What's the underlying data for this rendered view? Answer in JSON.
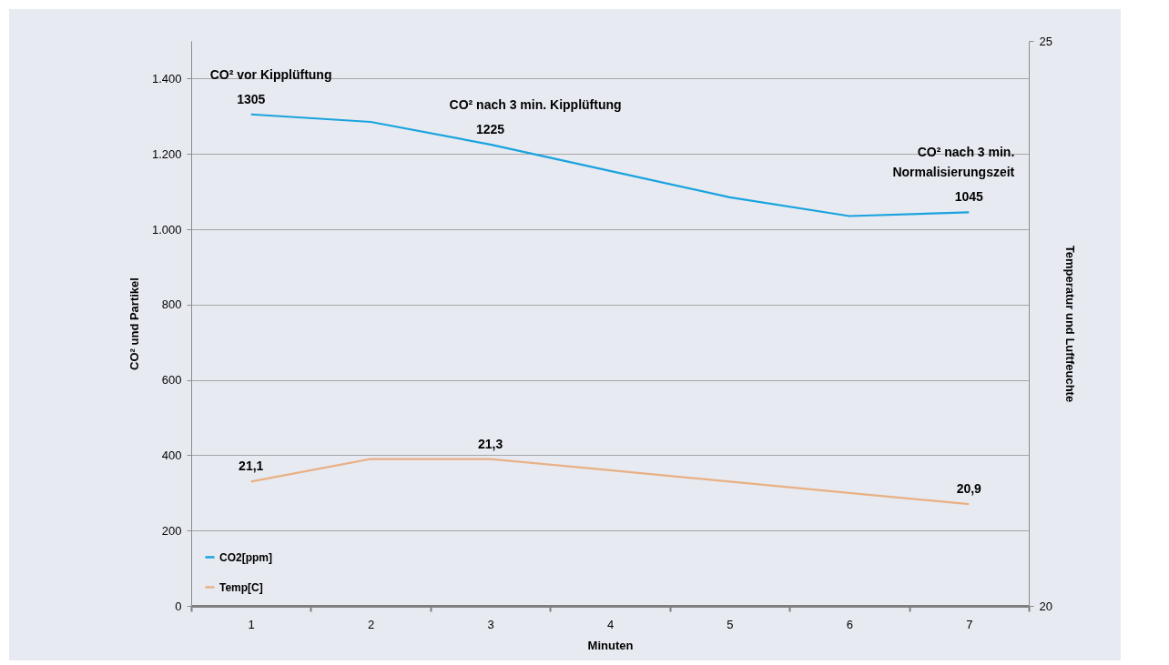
{
  "chart_data": {
    "type": "line",
    "xlabel": "Minuten",
    "ylabel": "CO² und Partikel",
    "y2label": "Temperatur und Luftfeuchte",
    "categories": [
      "1",
      "2",
      "3",
      "4",
      "5",
      "6",
      "7"
    ],
    "series": [
      {
        "name": "CO2[ppm]",
        "color": "#1aa3de",
        "values": [
          1305,
          1285,
          1225,
          1155,
          1085,
          1035,
          1045
        ],
        "value_labels": [
          "1305",
          null,
          "1225",
          null,
          null,
          null,
          "1045"
        ]
      },
      {
        "name": "Temp[C]",
        "color": "#e9b084",
        "axis": "y2",
        "values": [
          21.1,
          21.3,
          21.3,
          21.2,
          21.1,
          21.0,
          20.9
        ],
        "value_labels": [
          "21,1",
          null,
          "21,3",
          null,
          null,
          null,
          "20,9"
        ]
      }
    ],
    "ylim": [
      0,
      1500
    ],
    "yticks": [
      {
        "value": 0,
        "label": "0"
      },
      {
        "value": 200,
        "label": "200"
      },
      {
        "value": 400,
        "label": "400"
      },
      {
        "value": 600,
        "label": "600"
      },
      {
        "value": 800,
        "label": "800"
      },
      {
        "value": 1000,
        "label": "1.000"
      },
      {
        "value": 1200,
        "label": "1.200"
      },
      {
        "value": 1400,
        "label": "1.400"
      }
    ],
    "y2lim": [
      20,
      25
    ],
    "y2ticks": [
      20,
      25
    ],
    "annotations": [
      {
        "text": "CO² vor Kipplüftung",
        "x": "1",
        "y": 1305
      },
      {
        "text": "CO² nach 3 min. Kipplüftung",
        "x": "3",
        "y": 1225
      },
      {
        "text": "CO² nach 3 min.\nNormalisierungszeit",
        "x": "7",
        "y": 1045
      }
    ],
    "grid": "y",
    "legend": "bottom left",
    "marker": "none",
    "line_style": "solid"
  }
}
